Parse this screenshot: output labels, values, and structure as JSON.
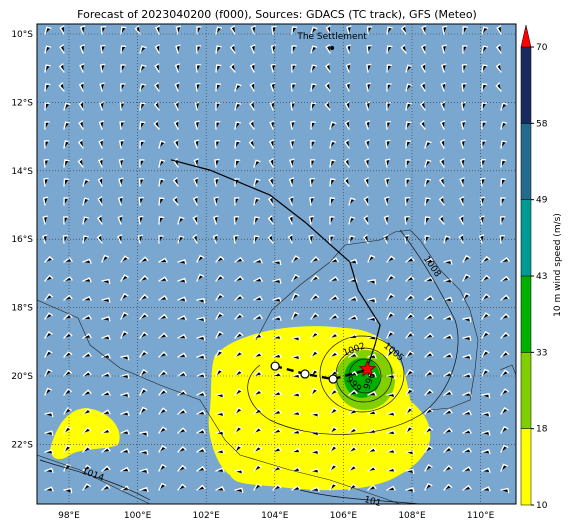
{
  "title": "Forecast of 2023040200 (f000), Sources: GDACS (TC track), GFS (Meteo)",
  "ocean_color": "#79a7cf",
  "lon_ticks": [
    {
      "value": 98,
      "label": "98°E"
    },
    {
      "value": 100,
      "label": "100°E"
    },
    {
      "value": 102,
      "label": "102°E"
    },
    {
      "value": 104,
      "label": "104°E"
    },
    {
      "value": 106,
      "label": "106°E"
    },
    {
      "value": 108,
      "label": "108°E"
    },
    {
      "value": 110,
      "label": "110°E"
    }
  ],
  "lat_ticks": [
    {
      "value": -10,
      "label": "10°S"
    },
    {
      "value": -12,
      "label": "12°S"
    },
    {
      "value": -14,
      "label": "14°S"
    },
    {
      "value": -16,
      "label": "16°S"
    },
    {
      "value": -18,
      "label": "18°S"
    },
    {
      "value": -20,
      "label": "20°S"
    },
    {
      "value": -22,
      "label": "22°S"
    }
  ],
  "place": {
    "name": "The Settlement",
    "lon": 105.67,
    "lat": -10.41
  },
  "track": {
    "lon": [
      100.97,
      102.11,
      103.86,
      104.88,
      106.19,
      106.43,
      107.07,
      106.92,
      106.69
    ],
    "lat": [
      -13.68,
      -13.98,
      -14.71,
      -15.5,
      -16.67,
      -17.49,
      -18.51,
      -19.09,
      -19.77
    ]
  },
  "forecast_track": {
    "lon": [
      104.01,
      104.88,
      105.7,
      106.69
    ],
    "lat": [
      -19.71,
      -19.94,
      -20.09,
      -19.82
    ]
  },
  "storm_center": {
    "lon": 106.7,
    "lat": -19.8
  },
  "isobar_labels": [
    "1014",
    "1008",
    "1005",
    "1002",
    "999",
    "996",
    "101"
  ],
  "colorbar": {
    "label": "10 m wind speed (m/s)",
    "levels": [
      10,
      18,
      33,
      43,
      49,
      58,
      70
    ],
    "colors": [
      "#ffff00",
      "#80d000",
      "#00b000",
      "#009a96",
      "#226b8e",
      "#1b2a5e"
    ],
    "extend_color": "#ff0000"
  }
}
